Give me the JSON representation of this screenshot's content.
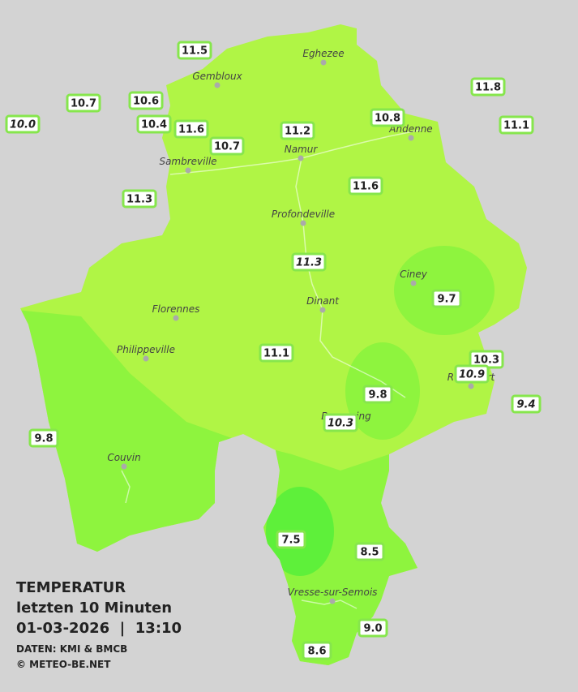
{
  "legend": {
    "title": "TEMPERATUR",
    "period": "letzten 10 Minuten",
    "date_time": "01-03-2026  |  13:10",
    "source": "DATEN: KMI & BMCB",
    "copyright": "© METEO-BE.NET"
  },
  "cities": [
    "Eghezee",
    "Gembloux",
    "Andenne",
    "Namur",
    "Sambreville",
    "Profondeville",
    "Ciney",
    "Dinant",
    "Florennes",
    "Philippeville",
    "Rochefort",
    "Beauraing",
    "Couvin",
    "Vresse-sur-Semois"
  ],
  "stations": [
    {
      "label": "11.5",
      "italic": false
    },
    {
      "label": "10.7",
      "italic": false
    },
    {
      "label": "10.6",
      "italic": false
    },
    {
      "label": "10.0",
      "italic": true
    },
    {
      "label": "10.4",
      "italic": false
    },
    {
      "label": "11.6",
      "italic": false
    },
    {
      "label": "10.7",
      "italic": false
    },
    {
      "label": "11.2",
      "italic": false
    },
    {
      "label": "10.8",
      "italic": false
    },
    {
      "label": "11.8",
      "italic": false
    },
    {
      "label": "11.1",
      "italic": false
    },
    {
      "label": "11.3",
      "italic": false
    },
    {
      "label": "11.6",
      "italic": false
    },
    {
      "label": "11.3",
      "italic": true
    },
    {
      "label": "9.7",
      "italic": false
    },
    {
      "label": "11.1",
      "italic": false
    },
    {
      "label": "10.3",
      "italic": false
    },
    {
      "label": "10.9",
      "italic": true
    },
    {
      "label": "9.4",
      "italic": true
    },
    {
      "label": "9.8",
      "italic": false
    },
    {
      "label": "10.3",
      "italic": true
    },
    {
      "label": "9.8",
      "italic": false
    },
    {
      "label": "7.5",
      "italic": false
    },
    {
      "label": "8.5",
      "italic": false
    },
    {
      "label": "9.0",
      "italic": false
    },
    {
      "label": "8.6",
      "italic": false
    }
  ]
}
